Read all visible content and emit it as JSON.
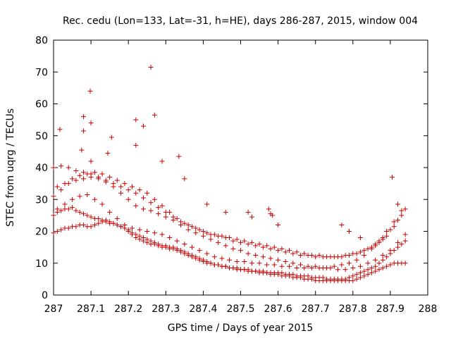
{
  "chart_data": {
    "type": "scatter",
    "title": "Rec. cedu (Lon=133, Lat=-31, h=HE), days 286-287, 2015, window 004",
    "xlabel": "GPS time / Days of year 2015",
    "ylabel": "STEC from uqrg / TECUs",
    "xlim": [
      287,
      288
    ],
    "ylim": [
      0,
      80
    ],
    "xticks": [
      "287",
      "287.1",
      "287.2",
      "287.3",
      "287.4",
      "287.5",
      "287.6",
      "287.7",
      "287.8",
      "287.9",
      "288"
    ],
    "yticks": [
      "0",
      "10",
      "20",
      "30",
      "40",
      "50",
      "60",
      "70",
      "80"
    ],
    "grid": false,
    "marker": "plus",
    "color": "#cc0000",
    "x": [
      287.0,
      287.01,
      287.02,
      287.03,
      287.04,
      287.05,
      287.06,
      287.07,
      287.08,
      287.09,
      287.1,
      287.11,
      287.12,
      287.13,
      287.14,
      287.15,
      287.16,
      287.17,
      287.18,
      287.19,
      287.2,
      287.21,
      287.22,
      287.23,
      287.24,
      287.25,
      287.26,
      287.27,
      287.28,
      287.29,
      287.3,
      287.31,
      287.32,
      287.33,
      287.34,
      287.35,
      287.36,
      287.37,
      287.38,
      287.39,
      287.4,
      287.41,
      287.42,
      287.43,
      287.44,
      287.45,
      287.46,
      287.47,
      287.48,
      287.49,
      287.5,
      287.51,
      287.52,
      287.53,
      287.54,
      287.55,
      287.56,
      287.57,
      287.58,
      287.59,
      287.6,
      287.61,
      287.62,
      287.63,
      287.64,
      287.65,
      287.66,
      287.67,
      287.68,
      287.69,
      287.7,
      287.71,
      287.72,
      287.73,
      287.74,
      287.75,
      287.76,
      287.77,
      287.78,
      287.79,
      287.8,
      287.81,
      287.82,
      287.83,
      287.84,
      287.85,
      287.86,
      287.87,
      287.88,
      287.89,
      287.9,
      287.91,
      287.92,
      287.93,
      287.94,
      287.0,
      287.01,
      287.02,
      287.03,
      287.04,
      287.05,
      287.06,
      287.07,
      287.08,
      287.09,
      287.1,
      287.11,
      287.12,
      287.13,
      287.14,
      287.15,
      287.16,
      287.17,
      287.18,
      287.19,
      287.2,
      287.21,
      287.22,
      287.23,
      287.24,
      287.25,
      287.26,
      287.27,
      287.28,
      287.29,
      287.3,
      287.31,
      287.32,
      287.33,
      287.34,
      287.35,
      287.36,
      287.37,
      287.38,
      287.39,
      287.4,
      287.41,
      287.42,
      287.43,
      287.44,
      287.45,
      287.46,
      287.47,
      287.48,
      287.49,
      287.5,
      287.51,
      287.52,
      287.53,
      287.54,
      287.55,
      287.56,
      287.57,
      287.58,
      287.59,
      287.6,
      287.61,
      287.62,
      287.63,
      287.64,
      287.65,
      287.66,
      287.67,
      287.68,
      287.69,
      287.7,
      287.71,
      287.72,
      287.73,
      287.74,
      287.75,
      287.76,
      287.77,
      287.78,
      287.79,
      287.8,
      287.81,
      287.82,
      287.83,
      287.84,
      287.85,
      287.86,
      287.87,
      287.88,
      287.89,
      287.9,
      287.91,
      287.92,
      287.93,
      287.94,
      287.0,
      287.02,
      287.04,
      287.06,
      287.08,
      287.1,
      287.12,
      287.14,
      287.16,
      287.18,
      287.2,
      287.22,
      287.24,
      287.26,
      287.28,
      287.3,
      287.32,
      287.34,
      287.36,
      287.38,
      287.4,
      287.42,
      287.44,
      287.46,
      287.48,
      287.5,
      287.52,
      287.54,
      287.56,
      287.58,
      287.6,
      287.62,
      287.64,
      287.66,
      287.68,
      287.7,
      287.72,
      287.74,
      287.76,
      287.78,
      287.8,
      287.82,
      287.84,
      287.86,
      287.88,
      287.9,
      287.92,
      287.94,
      287.01,
      287.03,
      287.05,
      287.07,
      287.09,
      287.11,
      287.13,
      287.15,
      287.17,
      287.19,
      287.21,
      287.23,
      287.25,
      287.27,
      287.29,
      287.31,
      287.33,
      287.35,
      287.37,
      287.39,
      287.41,
      287.43,
      287.45,
      287.47,
      287.49,
      287.51,
      287.53,
      287.55,
      287.57,
      287.59,
      287.61,
      287.63,
      287.65,
      287.67,
      287.69,
      287.71,
      287.73,
      287.75,
      287.77,
      287.79,
      287.81,
      287.83,
      287.85,
      287.87,
      287.89,
      287.91,
      287.93,
      287.0,
      287.02,
      287.04,
      287.06,
      287.08,
      287.1,
      287.12,
      287.14,
      287.16,
      287.18,
      287.2,
      287.22,
      287.24,
      287.26,
      287.28,
      287.3,
      287.32,
      287.34,
      287.36,
      287.38,
      287.4,
      287.42,
      287.44,
      287.46,
      287.48,
      287.5,
      287.52,
      287.54,
      287.56,
      287.58,
      287.6,
      287.62,
      287.64,
      287.66,
      287.68,
      287.7,
      287.72,
      287.74,
      287.76,
      287.78,
      287.8,
      287.82,
      287.84,
      287.86,
      287.88,
      287.9,
      287.92,
      287.94,
      287.01,
      287.03,
      287.05,
      287.07,
      287.09,
      287.11,
      287.13,
      287.15,
      287.17,
      287.19,
      287.21,
      287.23,
      287.25,
      287.27,
      287.29,
      287.31,
      287.33,
      287.35,
      287.37,
      287.39,
      287.41,
      287.43,
      287.45,
      287.47,
      287.49,
      287.51,
      287.53,
      287.55,
      287.57,
      287.59,
      287.61,
      287.63,
      287.65,
      287.67,
      287.69,
      287.71,
      287.73,
      287.75,
      287.77,
      287.79,
      287.81,
      287.83,
      287.85,
      287.87,
      287.89,
      287.91,
      287.93,
      287.075,
      287.08,
      287.098,
      287.1,
      287.26,
      287.24,
      287.22,
      287.27,
      287.017,
      287.08,
      287.1,
      287.145,
      287.155,
      287.22,
      287.29,
      287.335,
      287.52,
      287.575,
      287.585,
      287.905,
      287.92,
      287.35,
      287.41,
      287.46,
      287.53,
      287.58,
      287.6,
      287.77,
      287.79,
      287.82,
      287.86,
      287.88
    ],
    "y": [
      19.5,
      20.0,
      20.5,
      21.0,
      21.0,
      21.5,
      21.5,
      22.0,
      22.0,
      21.5,
      21.5,
      22.0,
      22.5,
      23.0,
      23.0,
      22.5,
      22.5,
      22.0,
      21.5,
      21.0,
      20.5,
      19.5,
      19.0,
      18.5,
      18.0,
      17.5,
      17.0,
      16.5,
      16.0,
      15.5,
      15.5,
      15.0,
      15.0,
      14.5,
      14.0,
      13.5,
      13.0,
      12.5,
      12.0,
      11.5,
      11.0,
      10.5,
      10.0,
      9.5,
      9.5,
      9.0,
      9.0,
      8.5,
      8.5,
      8.0,
      8.0,
      8.0,
      7.5,
      7.5,
      7.5,
      7.0,
      7.0,
      7.0,
      6.5,
      6.5,
      6.5,
      6.0,
      6.0,
      6.0,
      5.5,
      5.5,
      5.5,
      5.0,
      5.0,
      5.0,
      4.5,
      4.5,
      4.5,
      4.5,
      4.5,
      4.5,
      4.5,
      4.5,
      4.5,
      4.5,
      4.5,
      5.0,
      5.5,
      6.0,
      6.5,
      7.0,
      7.5,
      8.0,
      8.5,
      9.0,
      9.5,
      10.0,
      10.0,
      10.0,
      10.0,
      25.0,
      26.0,
      26.5,
      27.0,
      27.0,
      27.5,
      26.5,
      26.0,
      25.5,
      25.0,
      24.5,
      24.0,
      24.0,
      23.5,
      23.5,
      23.0,
      22.5,
      22.0,
      21.5,
      21.0,
      20.0,
      19.0,
      18.0,
      17.5,
      17.0,
      16.5,
      16.0,
      16.0,
      15.5,
      15.0,
      15.0,
      14.5,
      14.5,
      14.0,
      13.5,
      13.0,
      12.5,
      12.0,
      11.5,
      11.0,
      10.5,
      10.0,
      10.0,
      9.5,
      9.5,
      9.0,
      9.0,
      8.5,
      8.5,
      8.5,
      8.0,
      8.0,
      8.0,
      7.5,
      7.5,
      7.5,
      7.5,
      7.0,
      7.0,
      7.0,
      7.0,
      7.0,
      6.5,
      6.5,
      6.5,
      6.0,
      6.0,
      6.0,
      6.0,
      5.5,
      5.5,
      5.5,
      5.5,
      5.0,
      5.0,
      5.0,
      5.0,
      5.0,
      5.0,
      5.5,
      6.0,
      6.5,
      7.0,
      7.5,
      8.0,
      8.5,
      9.0,
      10.0,
      11.0,
      12.0,
      13.0,
      14.0,
      15.0,
      16.0,
      17.0,
      31.0,
      33.0,
      35.0,
      36.0,
      36.5,
      37.0,
      36.5,
      35.5,
      34.0,
      32.0,
      30.0,
      28.0,
      27.0,
      26.5,
      25.5,
      24.5,
      23.5,
      22.0,
      20.5,
      19.5,
      18.5,
      17.5,
      16.5,
      15.5,
      14.5,
      14.0,
      13.0,
      12.5,
      12.0,
      11.5,
      11.0,
      10.5,
      10.0,
      9.5,
      9.0,
      9.0,
      8.5,
      8.5,
      8.0,
      8.0,
      8.5,
      9.0,
      10.0,
      11.0,
      12.5,
      14.0,
      16.5,
      19.0,
      27.0,
      28.5,
      30.0,
      31.0,
      31.5,
      30.0,
      28.5,
      26.0,
      24.0,
      22.0,
      21.0,
      20.5,
      20.0,
      19.5,
      19.0,
      18.0,
      17.0,
      16.0,
      15.0,
      14.0,
      13.0,
      12.0,
      11.5,
      11.0,
      10.5,
      10.5,
      10.0,
      10.0,
      9.5,
      9.5,
      9.0,
      9.0,
      8.5,
      8.5,
      8.5,
      8.5,
      8.5,
      9.0,
      9.5,
      10.0,
      11.0,
      12.5,
      14.5,
      17.0,
      20.0,
      23.0,
      26.5,
      40.0,
      40.5,
      40.0,
      39.0,
      38.5,
      38.0,
      37.0,
      36.0,
      35.0,
      34.0,
      33.0,
      32.0,
      30.5,
      29.0,
      27.5,
      26.0,
      24.5,
      23.0,
      22.0,
      21.0,
      20.0,
      19.0,
      18.5,
      18.0,
      17.0,
      16.5,
      16.0,
      15.5,
      15.0,
      14.5,
      14.0,
      13.5,
      13.0,
      12.5,
      12.5,
      12.0,
      12.0,
      12.0,
      12.0,
      12.5,
      13.0,
      13.5,
      14.5,
      16.0,
      18.0,
      20.5,
      23.5,
      27.0,
      34.0,
      35.0,
      36.5,
      37.5,
      38.0,
      38.5,
      38.0,
      37.0,
      36.0,
      35.0,
      34.0,
      33.0,
      32.0,
      30.0,
      28.0,
      26.0,
      24.0,
      22.5,
      21.5,
      20.5,
      19.5,
      19.0,
      18.5,
      18.0,
      17.5,
      17.0,
      16.5,
      16.0,
      15.5,
      15.0,
      14.5,
      14.0,
      13.5,
      13.0,
      12.5,
      12.5,
      12.0,
      12.0,
      12.0,
      12.5,
      13.0,
      14.0,
      15.0,
      16.5,
      18.5,
      21.5,
      25.0,
      45.5,
      51.5,
      64.0,
      54.0,
      71.5,
      53.0,
      55.0,
      56.5,
      52.0,
      56.0,
      42.0,
      44.5,
      49.5,
      47.0,
      42.0,
      43.5,
      26.0,
      27.0,
      25.0,
      37.0,
      28.5,
      36.5,
      28.5,
      26.0,
      24.5,
      25.5,
      22.0,
      22.0,
      20.0,
      18.0,
      15.5,
      17.5
    ]
  }
}
